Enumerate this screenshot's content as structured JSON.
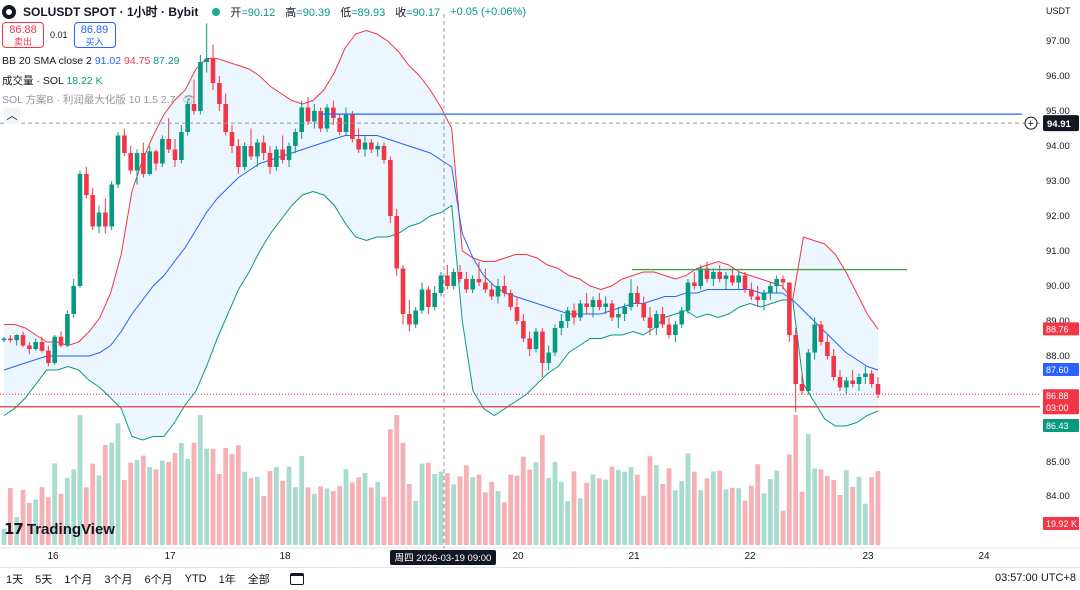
{
  "header": {
    "symbol": "SOLUSDT SPOT · 1小时 · Bybit",
    "open_label": "开",
    "open": "=90.12",
    "high_label": "高",
    "high": "=90.39",
    "low_label": "低",
    "low": "=89.93",
    "close_label": "收",
    "close": "=90.17",
    "change": "+0.05 (+0.06%)"
  },
  "trade": {
    "sell_price": "86.88",
    "sell_label": "卖出",
    "spread": "0.01",
    "buy_price": "86.89",
    "buy_label": "买入"
  },
  "indicators": {
    "bb_name": "BB 20 SMA close 2",
    "bb_basis": "91.02",
    "bb_upper": "94.75",
    "bb_lower": "87.29",
    "volume_name": "成交量 · SOL",
    "volume_value": "18.22 K",
    "strategy_name": "SOL 方案B · 利润最大化版 10 1.5 2.7"
  },
  "price_axis": {
    "currency": "USDT",
    "ticks": [
      "97.00",
      "96.00",
      "95.00",
      "94.00",
      "93.00",
      "92.00",
      "91.00",
      "90.00",
      "89.00",
      "88.00",
      "85.00",
      "84.00"
    ],
    "crosshair_label": "94.91",
    "badges": [
      {
        "text": "88.76",
        "color": "#f23645"
      },
      {
        "text": "87.60",
        "color": "#2962ff"
      },
      {
        "text": "86.88",
        "color": "#f23645"
      },
      {
        "text": "03:00",
        "color": "#f23645"
      },
      {
        "text": "86.43",
        "color": "#089981"
      },
      {
        "text": "19.92 K",
        "color": "#f23645"
      }
    ]
  },
  "time_axis": {
    "ticks": [
      "16",
      "17",
      "18",
      "20",
      "21",
      "22",
      "23",
      "24"
    ],
    "crosshair_label": "周四 2026-03-19   09:00"
  },
  "watermark": "TradingView",
  "bottom_bar": {
    "ranges": [
      "1天",
      "5天",
      "1个月",
      "3个月",
      "6个月",
      "YTD",
      "1年",
      "全部"
    ],
    "clock": "03:57:00 UTC+8"
  },
  "colors": {
    "up": "#089981",
    "down": "#f23645",
    "bb_upper": "#f23645",
    "bb_basis": "#2962ff",
    "bb_lower": "#089981",
    "bb_fill": "#e3f2fd",
    "hline_blue": "#2962ff",
    "hline_green": "#43a047",
    "hline_red": "#e53935"
  },
  "chart_data": {
    "type": "candlestick",
    "timeframe": "1h",
    "x_tick_labels": [
      "16",
      "17",
      "18",
      "20",
      "21",
      "22",
      "23",
      "24"
    ],
    "ylim": [
      85.6,
      97.6
    ],
    "candles_ohlc": [
      [
        88.45,
        88.55,
        88.4,
        88.5
      ],
      [
        88.5,
        88.6,
        88.38,
        88.45
      ],
      [
        88.45,
        88.62,
        88.3,
        88.6
      ],
      [
        88.6,
        88.7,
        88.25,
        88.3
      ],
      [
        88.3,
        88.4,
        88.05,
        88.2
      ],
      [
        88.2,
        88.5,
        88.15,
        88.4
      ],
      [
        88.4,
        88.55,
        88.1,
        88.15
      ],
      [
        88.15,
        88.3,
        87.7,
        87.8
      ],
      [
        87.8,
        88.6,
        87.75,
        88.55
      ],
      [
        88.55,
        88.7,
        88.25,
        88.3
      ],
      [
        88.3,
        89.3,
        88.25,
        89.2
      ],
      [
        89.2,
        90.2,
        89.1,
        90.0
      ],
      [
        90.0,
        93.3,
        89.95,
        93.2
      ],
      [
        93.2,
        93.4,
        92.5,
        92.6
      ],
      [
        92.6,
        92.8,
        91.6,
        91.7
      ],
      [
        91.7,
        92.3,
        91.5,
        92.1
      ],
      [
        92.1,
        92.5,
        91.5,
        91.7
      ],
      [
        91.7,
        93.0,
        91.6,
        92.9
      ],
      [
        92.9,
        94.4,
        92.8,
        94.3
      ],
      [
        94.3,
        94.5,
        93.7,
        93.8
      ],
      [
        93.8,
        94.0,
        93.2,
        93.3
      ],
      [
        93.3,
        93.9,
        92.9,
        93.8
      ],
      [
        93.8,
        94.1,
        93.1,
        93.2
      ],
      [
        93.2,
        94.0,
        93.15,
        93.85
      ],
      [
        93.85,
        93.9,
        93.3,
        93.5
      ],
      [
        93.5,
        94.3,
        93.4,
        94.2
      ],
      [
        94.2,
        94.8,
        93.8,
        93.9
      ],
      [
        93.9,
        94.2,
        93.4,
        93.6
      ],
      [
        93.6,
        94.6,
        93.5,
        94.4
      ],
      [
        94.4,
        95.3,
        94.3,
        95.2
      ],
      [
        95.2,
        95.9,
        94.9,
        95.0
      ],
      [
        95.0,
        96.6,
        94.9,
        96.4
      ],
      [
        96.4,
        97.5,
        96.1,
        96.5
      ],
      [
        96.5,
        96.9,
        95.6,
        95.8
      ],
      [
        95.8,
        96.0,
        95.0,
        95.2
      ],
      [
        95.2,
        95.5,
        94.3,
        94.4
      ],
      [
        94.4,
        94.6,
        93.8,
        94.0
      ],
      [
        94.0,
        94.2,
        93.2,
        93.4
      ],
      [
        93.4,
        94.1,
        93.3,
        94.0
      ],
      [
        94.0,
        94.5,
        93.6,
        93.7
      ],
      [
        93.7,
        94.2,
        93.4,
        94.1
      ],
      [
        94.1,
        94.3,
        93.6,
        93.8
      ],
      [
        93.8,
        94.0,
        93.2,
        93.4
      ],
      [
        93.4,
        94.0,
        93.3,
        93.9
      ],
      [
        93.9,
        94.3,
        93.5,
        93.6
      ],
      [
        93.6,
        94.1,
        93.4,
        94.0
      ],
      [
        94.0,
        94.5,
        93.8,
        94.4
      ],
      [
        94.4,
        95.3,
        94.2,
        95.1
      ],
      [
        95.1,
        95.4,
        94.6,
        94.7
      ],
      [
        94.7,
        95.2,
        94.5,
        95.0
      ],
      [
        95.0,
        95.1,
        94.4,
        94.5
      ],
      [
        94.5,
        95.2,
        94.4,
        95.1
      ],
      [
        95.1,
        95.3,
        94.6,
        94.8
      ],
      [
        94.8,
        94.9,
        94.3,
        94.4
      ],
      [
        94.4,
        95.1,
        94.3,
        94.9
      ],
      [
        94.9,
        95.0,
        94.1,
        94.2
      ],
      [
        94.2,
        94.5,
        93.8,
        93.9
      ],
      [
        93.9,
        94.3,
        93.7,
        94.1
      ],
      [
        94.1,
        94.2,
        93.8,
        93.9
      ],
      [
        93.9,
        94.1,
        93.7,
        94.0
      ],
      [
        94.0,
        94.1,
        93.5,
        93.6
      ],
      [
        93.6,
        93.7,
        91.8,
        92.0
      ],
      [
        92.0,
        92.2,
        90.3,
        90.5
      ],
      [
        90.5,
        90.6,
        88.9,
        89.2
      ],
      [
        89.2,
        89.6,
        88.7,
        88.9
      ],
      [
        88.9,
        89.4,
        88.8,
        89.3
      ],
      [
        89.3,
        90.1,
        89.2,
        89.9
      ],
      [
        89.9,
        90.0,
        89.2,
        89.4
      ],
      [
        89.4,
        90.0,
        89.3,
        89.8
      ],
      [
        89.8,
        90.4,
        89.7,
        90.3
      ],
      [
        90.3,
        90.6,
        89.9,
        90.0
      ],
      [
        90.0,
        90.5,
        89.9,
        90.4
      ],
      [
        90.4,
        90.6,
        90.1,
        90.2
      ],
      [
        90.2,
        90.4,
        89.8,
        89.9
      ],
      [
        89.9,
        90.3,
        89.8,
        90.2
      ],
      [
        90.2,
        90.7,
        90.0,
        90.1
      ],
      [
        90.1,
        90.5,
        89.8,
        89.9
      ],
      [
        89.9,
        90.1,
        89.6,
        89.7
      ],
      [
        89.7,
        90.2,
        89.5,
        90.0
      ],
      [
        90.0,
        90.3,
        89.7,
        89.8
      ],
      [
        89.8,
        89.9,
        89.3,
        89.4
      ],
      [
        89.4,
        89.7,
        88.9,
        89.0
      ],
      [
        89.0,
        89.2,
        88.4,
        88.5
      ],
      [
        88.5,
        88.7,
        88.0,
        88.2
      ],
      [
        88.2,
        88.8,
        88.1,
        88.7
      ],
      [
        88.7,
        88.8,
        87.4,
        87.8
      ],
      [
        87.8,
        88.3,
        87.6,
        88.1
      ],
      [
        88.1,
        88.9,
        88.0,
        88.8
      ],
      [
        88.8,
        89.2,
        88.6,
        89.0
      ],
      [
        89.0,
        89.4,
        88.8,
        89.3
      ],
      [
        89.3,
        89.5,
        88.9,
        89.1
      ],
      [
        89.1,
        89.6,
        89.0,
        89.5
      ],
      [
        89.5,
        89.8,
        89.2,
        89.4
      ],
      [
        89.4,
        89.7,
        89.1,
        89.6
      ],
      [
        89.6,
        89.8,
        89.3,
        89.4
      ],
      [
        89.4,
        89.7,
        89.2,
        89.5
      ],
      [
        89.5,
        89.6,
        89.0,
        89.1
      ],
      [
        89.1,
        89.4,
        88.8,
        89.2
      ],
      [
        89.2,
        89.5,
        89.0,
        89.4
      ],
      [
        89.4,
        90.2,
        89.3,
        89.8
      ],
      [
        89.8,
        90.0,
        89.4,
        89.5
      ],
      [
        89.5,
        89.7,
        89.0,
        89.1
      ],
      [
        89.1,
        89.4,
        88.6,
        88.8
      ],
      [
        88.8,
        89.3,
        88.6,
        89.2
      ],
      [
        89.2,
        89.4,
        88.8,
        88.9
      ],
      [
        88.9,
        89.1,
        88.5,
        88.6
      ],
      [
        88.6,
        89.0,
        88.4,
        88.9
      ],
      [
        88.9,
        89.4,
        88.8,
        89.3
      ],
      [
        89.3,
        90.2,
        89.2,
        90.1
      ],
      [
        90.1,
        90.4,
        89.9,
        90.0
      ],
      [
        90.0,
        90.6,
        89.9,
        90.5
      ],
      [
        90.5,
        90.7,
        90.1,
        90.2
      ],
      [
        90.2,
        90.5,
        90.0,
        90.4
      ],
      [
        90.4,
        90.6,
        90.1,
        90.2
      ],
      [
        90.2,
        90.4,
        89.9,
        90.3
      ],
      [
        90.3,
        90.5,
        90.0,
        90.1
      ],
      [
        90.1,
        90.4,
        89.9,
        90.3
      ],
      [
        90.3,
        90.4,
        89.8,
        89.9
      ],
      [
        89.9,
        90.1,
        89.6,
        89.7
      ],
      [
        89.7,
        90.0,
        89.4,
        89.6
      ],
      [
        89.6,
        89.9,
        89.3,
        89.8
      ],
      [
        89.8,
        90.1,
        89.6,
        90.0
      ],
      [
        90.0,
        90.3,
        89.8,
        90.2
      ],
      [
        90.2,
        90.3,
        89.9,
        90.1
      ],
      [
        90.1,
        89.9,
        88.4,
        88.6
      ],
      [
        88.6,
        88.8,
        86.4,
        87.2
      ],
      [
        87.2,
        87.5,
        86.9,
        87.0
      ],
      [
        87.0,
        88.2,
        86.9,
        88.1
      ],
      [
        88.1,
        89.1,
        87.9,
        88.9
      ],
      [
        88.9,
        89.0,
        88.3,
        88.4
      ],
      [
        88.4,
        88.6,
        87.9,
        88.0
      ],
      [
        88.0,
        88.2,
        87.3,
        87.4
      ],
      [
        87.4,
        87.6,
        87.0,
        87.1
      ],
      [
        87.1,
        87.4,
        86.9,
        87.3
      ],
      [
        87.3,
        87.6,
        87.1,
        87.2
      ],
      [
        87.2,
        87.5,
        87.0,
        87.4
      ],
      [
        87.4,
        87.7,
        87.2,
        87.5
      ],
      [
        87.5,
        87.6,
        87.1,
        87.2
      ],
      [
        87.2,
        87.4,
        86.8,
        86.9
      ]
    ],
    "bb_upper_line": [
      88.9,
      88.9,
      88.8,
      88.6,
      88.4,
      88.4,
      88.3,
      88.4,
      88.7,
      89.1,
      89.8,
      90.9,
      92.7,
      93.6,
      94.3,
      94.9,
      95.3,
      95.6,
      96.2,
      96.5,
      96.5,
      96.4,
      96.3,
      96.2,
      96.0,
      95.7,
      95.5,
      95.3,
      95.2,
      95.3,
      95.6,
      96.1,
      96.8,
      97.2,
      97.3,
      97.2,
      97.0,
      96.7,
      96.3,
      96.0,
      95.6,
      95.1,
      94.5,
      91.0,
      90.8,
      90.7,
      90.7,
      90.8,
      90.9,
      90.9,
      90.8,
      90.6,
      90.5,
      90.3,
      90.2,
      90.0,
      89.9,
      90.0,
      90.2,
      90.3,
      90.4,
      90.4,
      90.3,
      90.2,
      90.3,
      90.5,
      90.6,
      90.7,
      90.6,
      90.4,
      90.3,
      90.2,
      90.1,
      90.0,
      89.6,
      91.4,
      91.3,
      91.2,
      90.9,
      90.4,
      89.8,
      89.2,
      88.76
    ],
    "bb_basis_line": [
      87.6,
      87.7,
      87.8,
      87.9,
      88.0,
      88.0,
      88.0,
      88.0,
      88.0,
      88.1,
      88.3,
      88.7,
      89.2,
      89.6,
      90.0,
      90.3,
      90.7,
      91.1,
      91.6,
      92.1,
      92.5,
      92.8,
      93.1,
      93.3,
      93.5,
      93.6,
      93.7,
      93.8,
      93.9,
      94.0,
      94.1,
      94.2,
      94.3,
      94.3,
      94.3,
      94.3,
      94.2,
      94.1,
      94.0,
      93.9,
      93.8,
      93.6,
      93.4,
      91.5,
      90.8,
      90.3,
      90.0,
      89.8,
      89.7,
      89.6,
      89.5,
      89.4,
      89.3,
      89.2,
      89.2,
      89.2,
      89.2,
      89.3,
      89.4,
      89.5,
      89.5,
      89.6,
      89.7,
      89.7,
      89.8,
      89.8,
      89.9,
      89.9,
      89.9,
      89.9,
      89.9,
      89.8,
      89.8,
      89.8,
      89.6,
      89.3,
      89.0,
      88.7,
      88.4,
      88.1,
      87.9,
      87.7,
      87.6
    ],
    "bb_lower_line": [
      86.3,
      86.5,
      86.8,
      87.2,
      87.6,
      87.6,
      87.7,
      87.6,
      87.3,
      87.1,
      86.8,
      86.5,
      85.7,
      85.6,
      85.7,
      85.7,
      86.1,
      86.6,
      87.0,
      87.7,
      88.5,
      89.2,
      89.9,
      90.4,
      91.0,
      91.5,
      91.9,
      92.3,
      92.6,
      92.7,
      92.6,
      92.3,
      91.8,
      91.4,
      91.3,
      91.4,
      91.4,
      91.5,
      91.7,
      91.8,
      92.0,
      92.1,
      92.3,
      89.0,
      87.0,
      86.5,
      86.3,
      86.5,
      86.7,
      86.9,
      87.2,
      87.5,
      87.7,
      88.1,
      88.3,
      88.5,
      88.5,
      88.6,
      88.6,
      88.7,
      88.6,
      88.8,
      89.1,
      89.2,
      89.3,
      89.1,
      89.2,
      89.1,
      89.2,
      89.4,
      89.5,
      89.4,
      89.5,
      89.6,
      89.6,
      87.2,
      86.7,
      86.2,
      86.0,
      86.0,
      86.1,
      86.3,
      86.43
    ],
    "bb_last": {
      "upper": 88.76,
      "basis": 87.6,
      "lower": 86.43
    },
    "volume_axis_label": "19.92 K",
    "hlines": [
      {
        "price": 94.91,
        "label": "94.91"
      },
      {
        "price": 90.47
      },
      {
        "price": 86.55
      }
    ],
    "last_price": 86.88
  }
}
